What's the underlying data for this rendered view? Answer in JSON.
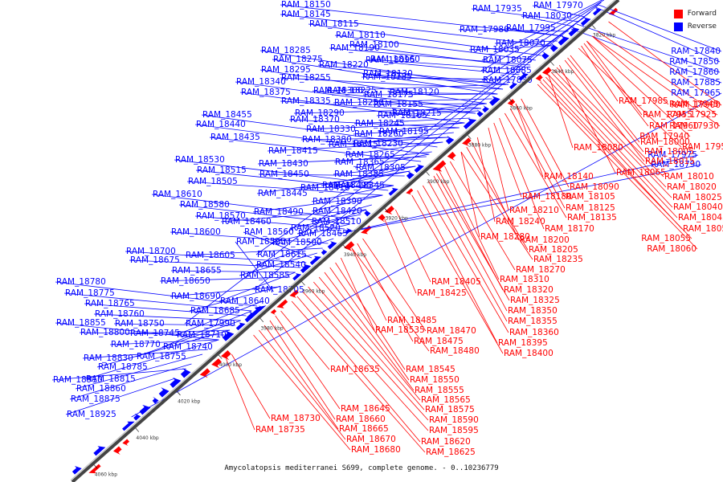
{
  "caption": "Amycolatopsis mediterranei S699, complete genome. - 0..10236779",
  "legend": [
    {
      "label": "Forward",
      "color": "#ff0000"
    },
    {
      "label": "Reverse",
      "color": "#0000ff"
    }
  ],
  "colors": {
    "forward": "#ff0000",
    "reverse": "#0000ff",
    "axis": "#444444"
  },
  "kbp_ticks": [
    "3820 kbp",
    "3840 kbp",
    "3860 kbp",
    "3880 kbp",
    "3900 kbp",
    "3920 kbp",
    "3940 kbp",
    "3960 kbp",
    "3980 kbp",
    "4000 kbp",
    "4020 kbp",
    "4040 kbp",
    "4060 kbp"
  ],
  "reverse_labels": [
    "RAM_18150",
    "RAM_18145",
    "RAM_18115",
    "RAM_18110",
    "RAM_18100",
    "RAM_18095",
    "RAM_18130",
    "RAM_18120",
    "RAM_18155",
    "RAM_18165",
    "RAM_18195",
    "RAM_18230",
    "RAM_18265",
    "RAM_18305",
    "RAM_18345",
    "RAM_18390",
    "RAM_18420",
    "RAM_18465",
    "RAM_18500",
    "RAM_18540",
    "RAM_18585",
    "RAM_18640",
    "RAM_18685",
    "RAM_18710",
    "RAM_18740",
    "RAM_18755",
    "RAM_18785",
    "RAM_18815",
    "RAM_18860",
    "RAM_18875",
    "RAM_18925",
    "RAM_18285",
    "RAM_18275",
    "RAM_18295",
    "RAM_18340",
    "RAM_18375",
    "RAM_18455",
    "RAM_18440",
    "RAM_18435",
    "RAM_18530",
    "RAM_18515",
    "RAM_18505",
    "RAM_18610",
    "RAM_18580",
    "RAM_18570",
    "RAM_18600",
    "RAM_18605",
    "RAM_18700",
    "RAM_18675",
    "RAM_18655",
    "RAM_18650",
    "RAM_18690",
    "RAM_18780",
    "RAM_18775",
    "RAM_18765",
    "RAM_18760",
    "RAM_18855",
    "RAM_18750",
    "RAM_18800",
    "RAM_18745",
    "RAM_18770",
    "RAM_18830",
    "RAM_18910",
    "RAM_18190",
    "RAM_18220",
    "RAM_18160",
    "RAM_18185",
    "RAM_18255",
    "RAM_18225",
    "RAM_18300",
    "RAM_18175",
    "RAM_18335",
    "RAM_18250",
    "RAM_18290",
    "RAM_18215",
    "RAM_18370",
    "RAM_18245",
    "RAM_18330",
    "RAM_18260",
    "RAM_18380",
    "RAM_18315",
    "RAM_18415",
    "RAM_18365",
    "RAM_18430",
    "RAM_18385",
    "RAM_18450",
    "RAM_18495",
    "RAM_18445",
    "RAM_18410",
    "RAM_18490",
    "RAM_18510",
    "RAM_18460",
    "RAM_18520",
    "RAM_18560",
    "RAM_18525",
    "RAM_18615",
    "RAM_18705",
    "RAM_17990",
    "RAM_17935",
    "RAM_17970",
    "RAM_18030",
    "RAM_17980",
    "RAM_17995",
    "RAM_18070",
    "RAM_18035",
    "RAM_18075",
    "RAM_18085",
    "RAM_17830",
    "RAM_17840",
    "RAM_17850",
    "RAM_17860",
    "RAM_17885",
    "RAM_17965",
    "RAM_17975",
    "RAM_18790"
  ],
  "forward_labels": [
    "RAM_17900",
    "RAM_17945",
    "RAM_17925",
    "RAM_17985",
    "RAM_17955",
    "RAM_17930",
    "RAM_17960",
    "RAM_17940",
    "RAM_17950",
    "RAM_18000",
    "RAM_18005",
    "RAM_18015",
    "RAM_18080",
    "RAM_18065",
    "RAM_18010",
    "RAM_18020",
    "RAM_18025",
    "RAM_18040",
    "RAM_18045",
    "RAM_18050",
    "RAM_18055",
    "RAM_18060",
    "RAM_18140",
    "RAM_18090",
    "RAM_18105",
    "RAM_18125",
    "RAM_18135",
    "RAM_18180",
    "RAM_18210",
    "RAM_18170",
    "RAM_18240",
    "RAM_18280",
    "RAM_18200",
    "RAM_18205",
    "RAM_18235",
    "RAM_18270",
    "RAM_18310",
    "RAM_18320",
    "RAM_18325",
    "RAM_18350",
    "RAM_18355",
    "RAM_18360",
    "RAM_18395",
    "RAM_18400",
    "RAM_18405",
    "RAM_18425",
    "RAM_18485",
    "RAM_18535",
    "RAM_18470",
    "RAM_18475",
    "RAM_18480",
    "RAM_18545",
    "RAM_18550",
    "RAM_18555",
    "RAM_18565",
    "RAM_18575",
    "RAM_18590",
    "RAM_18595",
    "RAM_18620",
    "RAM_18625",
    "RAM_18635",
    "RAM_18645",
    "RAM_18660",
    "RAM_18665",
    "RAM_18670",
    "RAM_18680",
    "RAM_18730",
    "RAM_18735"
  ]
}
